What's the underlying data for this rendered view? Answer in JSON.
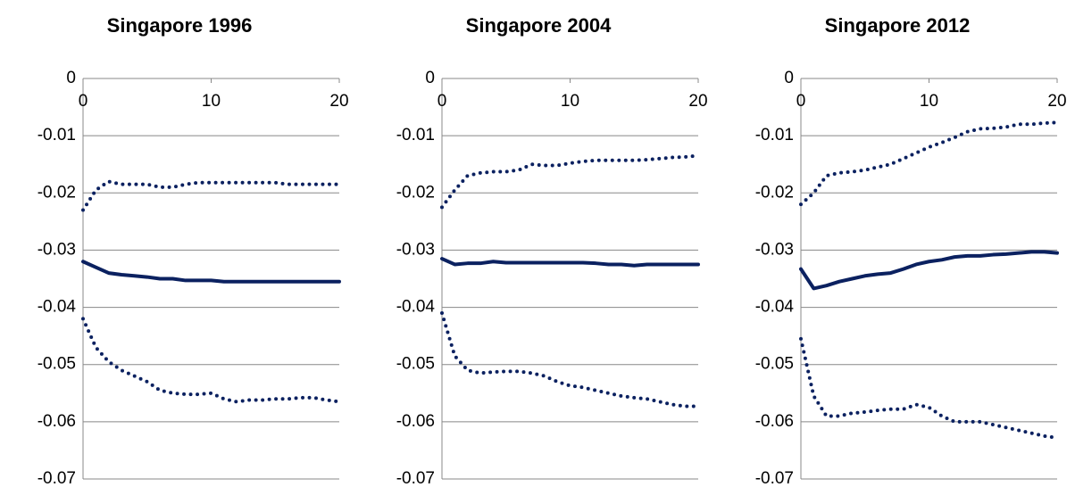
{
  "chart_data": [
    {
      "type": "line",
      "title": "Singapore 1996",
      "x": [
        0,
        1,
        2,
        3,
        4,
        5,
        6,
        7,
        8,
        9,
        10,
        11,
        12,
        13,
        14,
        15,
        16,
        17,
        18,
        19,
        20
      ],
      "xlim": [
        0,
        20
      ],
      "xticks": [
        0,
        10,
        20
      ],
      "ylim": [
        -0.07,
        0
      ],
      "yticks": [
        0,
        -0.01,
        -0.02,
        -0.03,
        -0.04,
        -0.05,
        -0.06,
        -0.07
      ],
      "grid": true,
      "series": [
        {
          "color": "#0b2160",
          "style": "dotted",
          "values": [
            -0.023,
            -0.0195,
            -0.018,
            -0.0185,
            -0.0185,
            -0.0185,
            -0.019,
            -0.019,
            -0.0185,
            -0.0182,
            -0.0182,
            -0.0182,
            -0.0182,
            -0.0182,
            -0.0182,
            -0.0182,
            -0.0185,
            -0.0185,
            -0.0185,
            -0.0185,
            -0.0185
          ]
        },
        {
          "color": "#0b2160",
          "style": "solid",
          "values": [
            -0.032,
            -0.033,
            -0.034,
            -0.0343,
            -0.0345,
            -0.0347,
            -0.035,
            -0.035,
            -0.0353,
            -0.0353,
            -0.0353,
            -0.0355,
            -0.0355,
            -0.0355,
            -0.0355,
            -0.0355,
            -0.0355,
            -0.0355,
            -0.0355,
            -0.0355,
            -0.0355
          ]
        },
        {
          "color": "#0b2160",
          "style": "dotted",
          "values": [
            -0.042,
            -0.047,
            -0.0495,
            -0.051,
            -0.052,
            -0.053,
            -0.0545,
            -0.055,
            -0.0552,
            -0.0552,
            -0.055,
            -0.056,
            -0.0565,
            -0.0562,
            -0.0562,
            -0.056,
            -0.056,
            -0.0558,
            -0.0558,
            -0.0562,
            -0.0565
          ]
        }
      ]
    },
    {
      "type": "line",
      "title": "Singapore 2004",
      "x": [
        0,
        1,
        2,
        3,
        4,
        5,
        6,
        7,
        8,
        9,
        10,
        11,
        12,
        13,
        14,
        15,
        16,
        17,
        18,
        19,
        20
      ],
      "xlim": [
        0,
        20
      ],
      "xticks": [
        0,
        10,
        20
      ],
      "ylim": [
        -0.07,
        0
      ],
      "yticks": [
        0,
        -0.01,
        -0.02,
        -0.03,
        -0.04,
        -0.05,
        -0.06,
        -0.07
      ],
      "grid": true,
      "series": [
        {
          "color": "#0b2160",
          "style": "dotted",
          "values": [
            -0.0225,
            -0.0195,
            -0.017,
            -0.0165,
            -0.0163,
            -0.0163,
            -0.016,
            -0.015,
            -0.0152,
            -0.0152,
            -0.0148,
            -0.0145,
            -0.0143,
            -0.0143,
            -0.0143,
            -0.0143,
            -0.0142,
            -0.014,
            -0.0138,
            -0.0137,
            -0.0135
          ]
        },
        {
          "color": "#0b2160",
          "style": "solid",
          "values": [
            -0.0315,
            -0.0325,
            -0.0323,
            -0.0323,
            -0.032,
            -0.0322,
            -0.0322,
            -0.0322,
            -0.0322,
            -0.0322,
            -0.0322,
            -0.0322,
            -0.0323,
            -0.0325,
            -0.0325,
            -0.0327,
            -0.0325,
            -0.0325,
            -0.0325,
            -0.0325,
            -0.0325
          ]
        },
        {
          "color": "#0b2160",
          "style": "dotted",
          "values": [
            -0.041,
            -0.0485,
            -0.051,
            -0.0515,
            -0.0513,
            -0.0512,
            -0.0512,
            -0.0515,
            -0.052,
            -0.053,
            -0.0537,
            -0.054,
            -0.0545,
            -0.055,
            -0.0555,
            -0.0558,
            -0.056,
            -0.0565,
            -0.057,
            -0.0573,
            -0.0573
          ]
        }
      ]
    },
    {
      "type": "line",
      "title": "Singapore 2012",
      "x": [
        0,
        1,
        2,
        3,
        4,
        5,
        6,
        7,
        8,
        9,
        10,
        11,
        12,
        13,
        14,
        15,
        16,
        17,
        18,
        19,
        20
      ],
      "xlim": [
        0,
        20
      ],
      "xticks": [
        0,
        10,
        20
      ],
      "ylim": [
        -0.07,
        0
      ],
      "yticks": [
        0,
        -0.01,
        -0.02,
        -0.03,
        -0.04,
        -0.05,
        -0.06,
        -0.07
      ],
      "grid": true,
      "series": [
        {
          "color": "#0b2160",
          "style": "dotted",
          "values": [
            -0.022,
            -0.02,
            -0.017,
            -0.0165,
            -0.0163,
            -0.016,
            -0.0155,
            -0.015,
            -0.014,
            -0.013,
            -0.012,
            -0.0112,
            -0.0103,
            -0.0093,
            -0.0088,
            -0.0087,
            -0.0085,
            -0.008,
            -0.008,
            -0.0078,
            -0.0077
          ]
        },
        {
          "color": "#0b2160",
          "style": "solid",
          "values": [
            -0.0333,
            -0.0367,
            -0.0362,
            -0.0355,
            -0.035,
            -0.0345,
            -0.0342,
            -0.034,
            -0.0333,
            -0.0325,
            -0.032,
            -0.0317,
            -0.0312,
            -0.031,
            -0.031,
            -0.0308,
            -0.0307,
            -0.0305,
            -0.0303,
            -0.0303,
            -0.0305
          ]
        },
        {
          "color": "#0b2160",
          "style": "dotted",
          "values": [
            -0.0455,
            -0.0555,
            -0.059,
            -0.059,
            -0.0585,
            -0.0583,
            -0.058,
            -0.0578,
            -0.0578,
            -0.057,
            -0.0575,
            -0.059,
            -0.06,
            -0.06,
            -0.06,
            -0.0605,
            -0.061,
            -0.0615,
            -0.062,
            -0.0625,
            -0.0628
          ]
        }
      ]
    }
  ]
}
